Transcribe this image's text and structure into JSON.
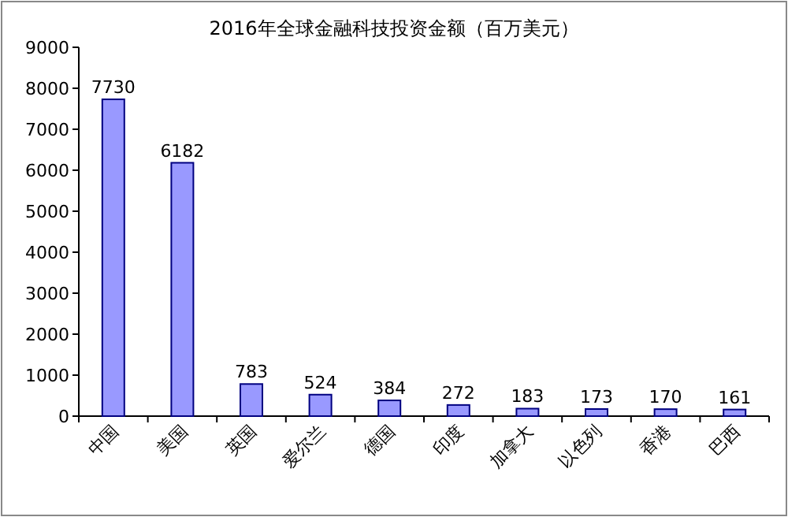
{
  "chart_data": {
    "type": "bar",
    "title": "2016年全球金融科技投资金额（百万美元）",
    "categories": [
      "中国",
      "美国",
      "英国",
      "爱尔兰",
      "德国",
      "印度",
      "加拿大",
      "以色列",
      "香港",
      "巴西"
    ],
    "values": [
      7730,
      6182,
      783,
      524,
      384,
      272,
      183,
      173,
      170,
      161
    ],
    "color": "#9999ff",
    "ylim": [
      0,
      9000
    ],
    "yticks": [
      0,
      1000,
      2000,
      3000,
      4000,
      5000,
      6000,
      7000,
      8000,
      9000
    ],
    "data_labels": true
  }
}
